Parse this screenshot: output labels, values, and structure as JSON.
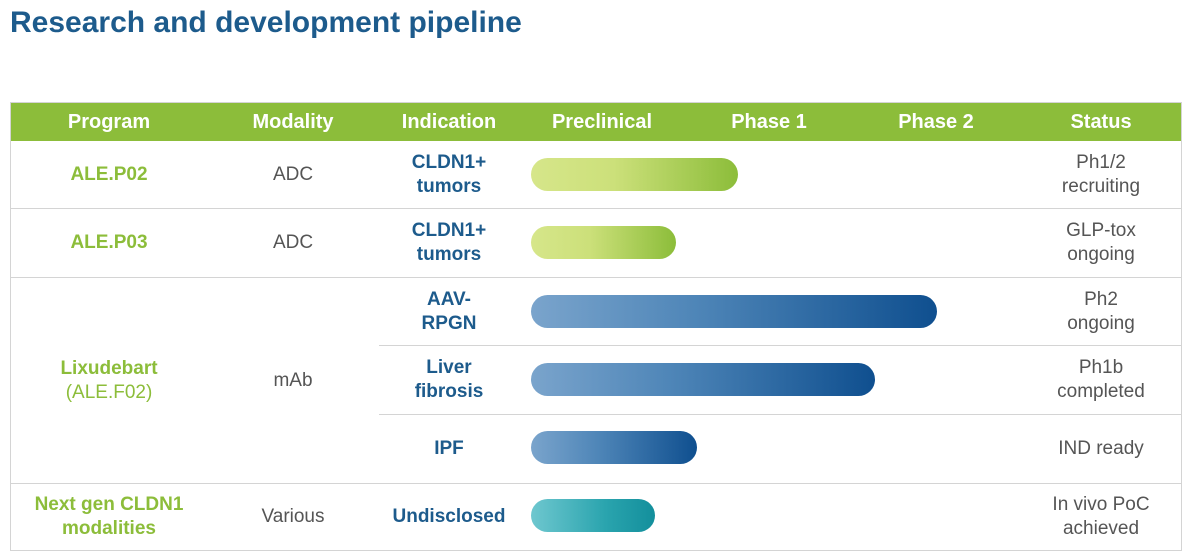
{
  "title": "Research and development pipeline",
  "columns": [
    "Program",
    "Modality",
    "Indication",
    "Preclinical",
    "Phase 1",
    "Phase 2",
    "Status"
  ],
  "programs": [
    {
      "name": "ALE.P02",
      "sub": "",
      "modality": "ADC"
    },
    {
      "name": "ALE.P03",
      "sub": "",
      "modality": "ADC"
    },
    {
      "name": "Lixudebart",
      "sub": "(ALE.F02)",
      "modality": "mAb"
    },
    {
      "name": "Next gen CLDN1 modalities",
      "sub": "",
      "modality": "Various"
    }
  ],
  "rows": [
    {
      "indication": "CLDN1+ tumors",
      "status": "Ph1/2 recruiting",
      "progress": 0.5,
      "color": "#8cbd3a"
    },
    {
      "indication": "CLDN1+ tumors",
      "status": "GLP-tox ongoing",
      "progress": 0.35,
      "color": "#8cbd3a"
    },
    {
      "indication": "AAV-RPGN",
      "status": "Ph2 ongoing",
      "progress": 0.98,
      "color": "#0f4f8f"
    },
    {
      "indication": "Liver fibrosis",
      "status": "Ph1b completed",
      "progress": 0.83,
      "color": "#0f4f8f"
    },
    {
      "indication": "IPF",
      "status": "IND ready",
      "progress": 0.4,
      "color": "#0f4f8f"
    },
    {
      "indication": "Undisclosed",
      "status": "In vivo PoC achieved",
      "progress": 0.3,
      "color": "#138f9c"
    }
  ],
  "colors": {
    "header": "#8cbd3a",
    "title": "#1d5b8c",
    "program": "#8cbd3a",
    "indication": "#1d5b8c"
  }
}
